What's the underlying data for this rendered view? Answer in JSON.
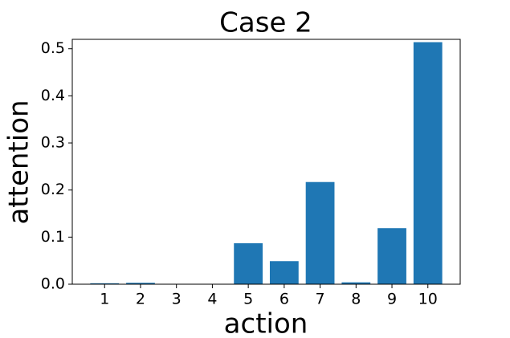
{
  "chart_data": {
    "type": "bar",
    "title": "Case 2",
    "x_label": "action",
    "y_label": "attention",
    "categories": [
      "1",
      "2",
      "3",
      "4",
      "5",
      "6",
      "7",
      "8",
      "9",
      "10"
    ],
    "values": [
      0.002,
      0.003,
      0.0,
      0.0,
      0.087,
      0.049,
      0.217,
      0.004,
      0.119,
      0.514
    ],
    "color": "#1f77b4",
    "ylim": [
      0,
      0.52
    ],
    "yticks": [
      {
        "value": 0,
        "label": "0.0"
      },
      0.1,
      0.2,
      0.3,
      0.4,
      0.5
    ],
    "grid": false
  }
}
